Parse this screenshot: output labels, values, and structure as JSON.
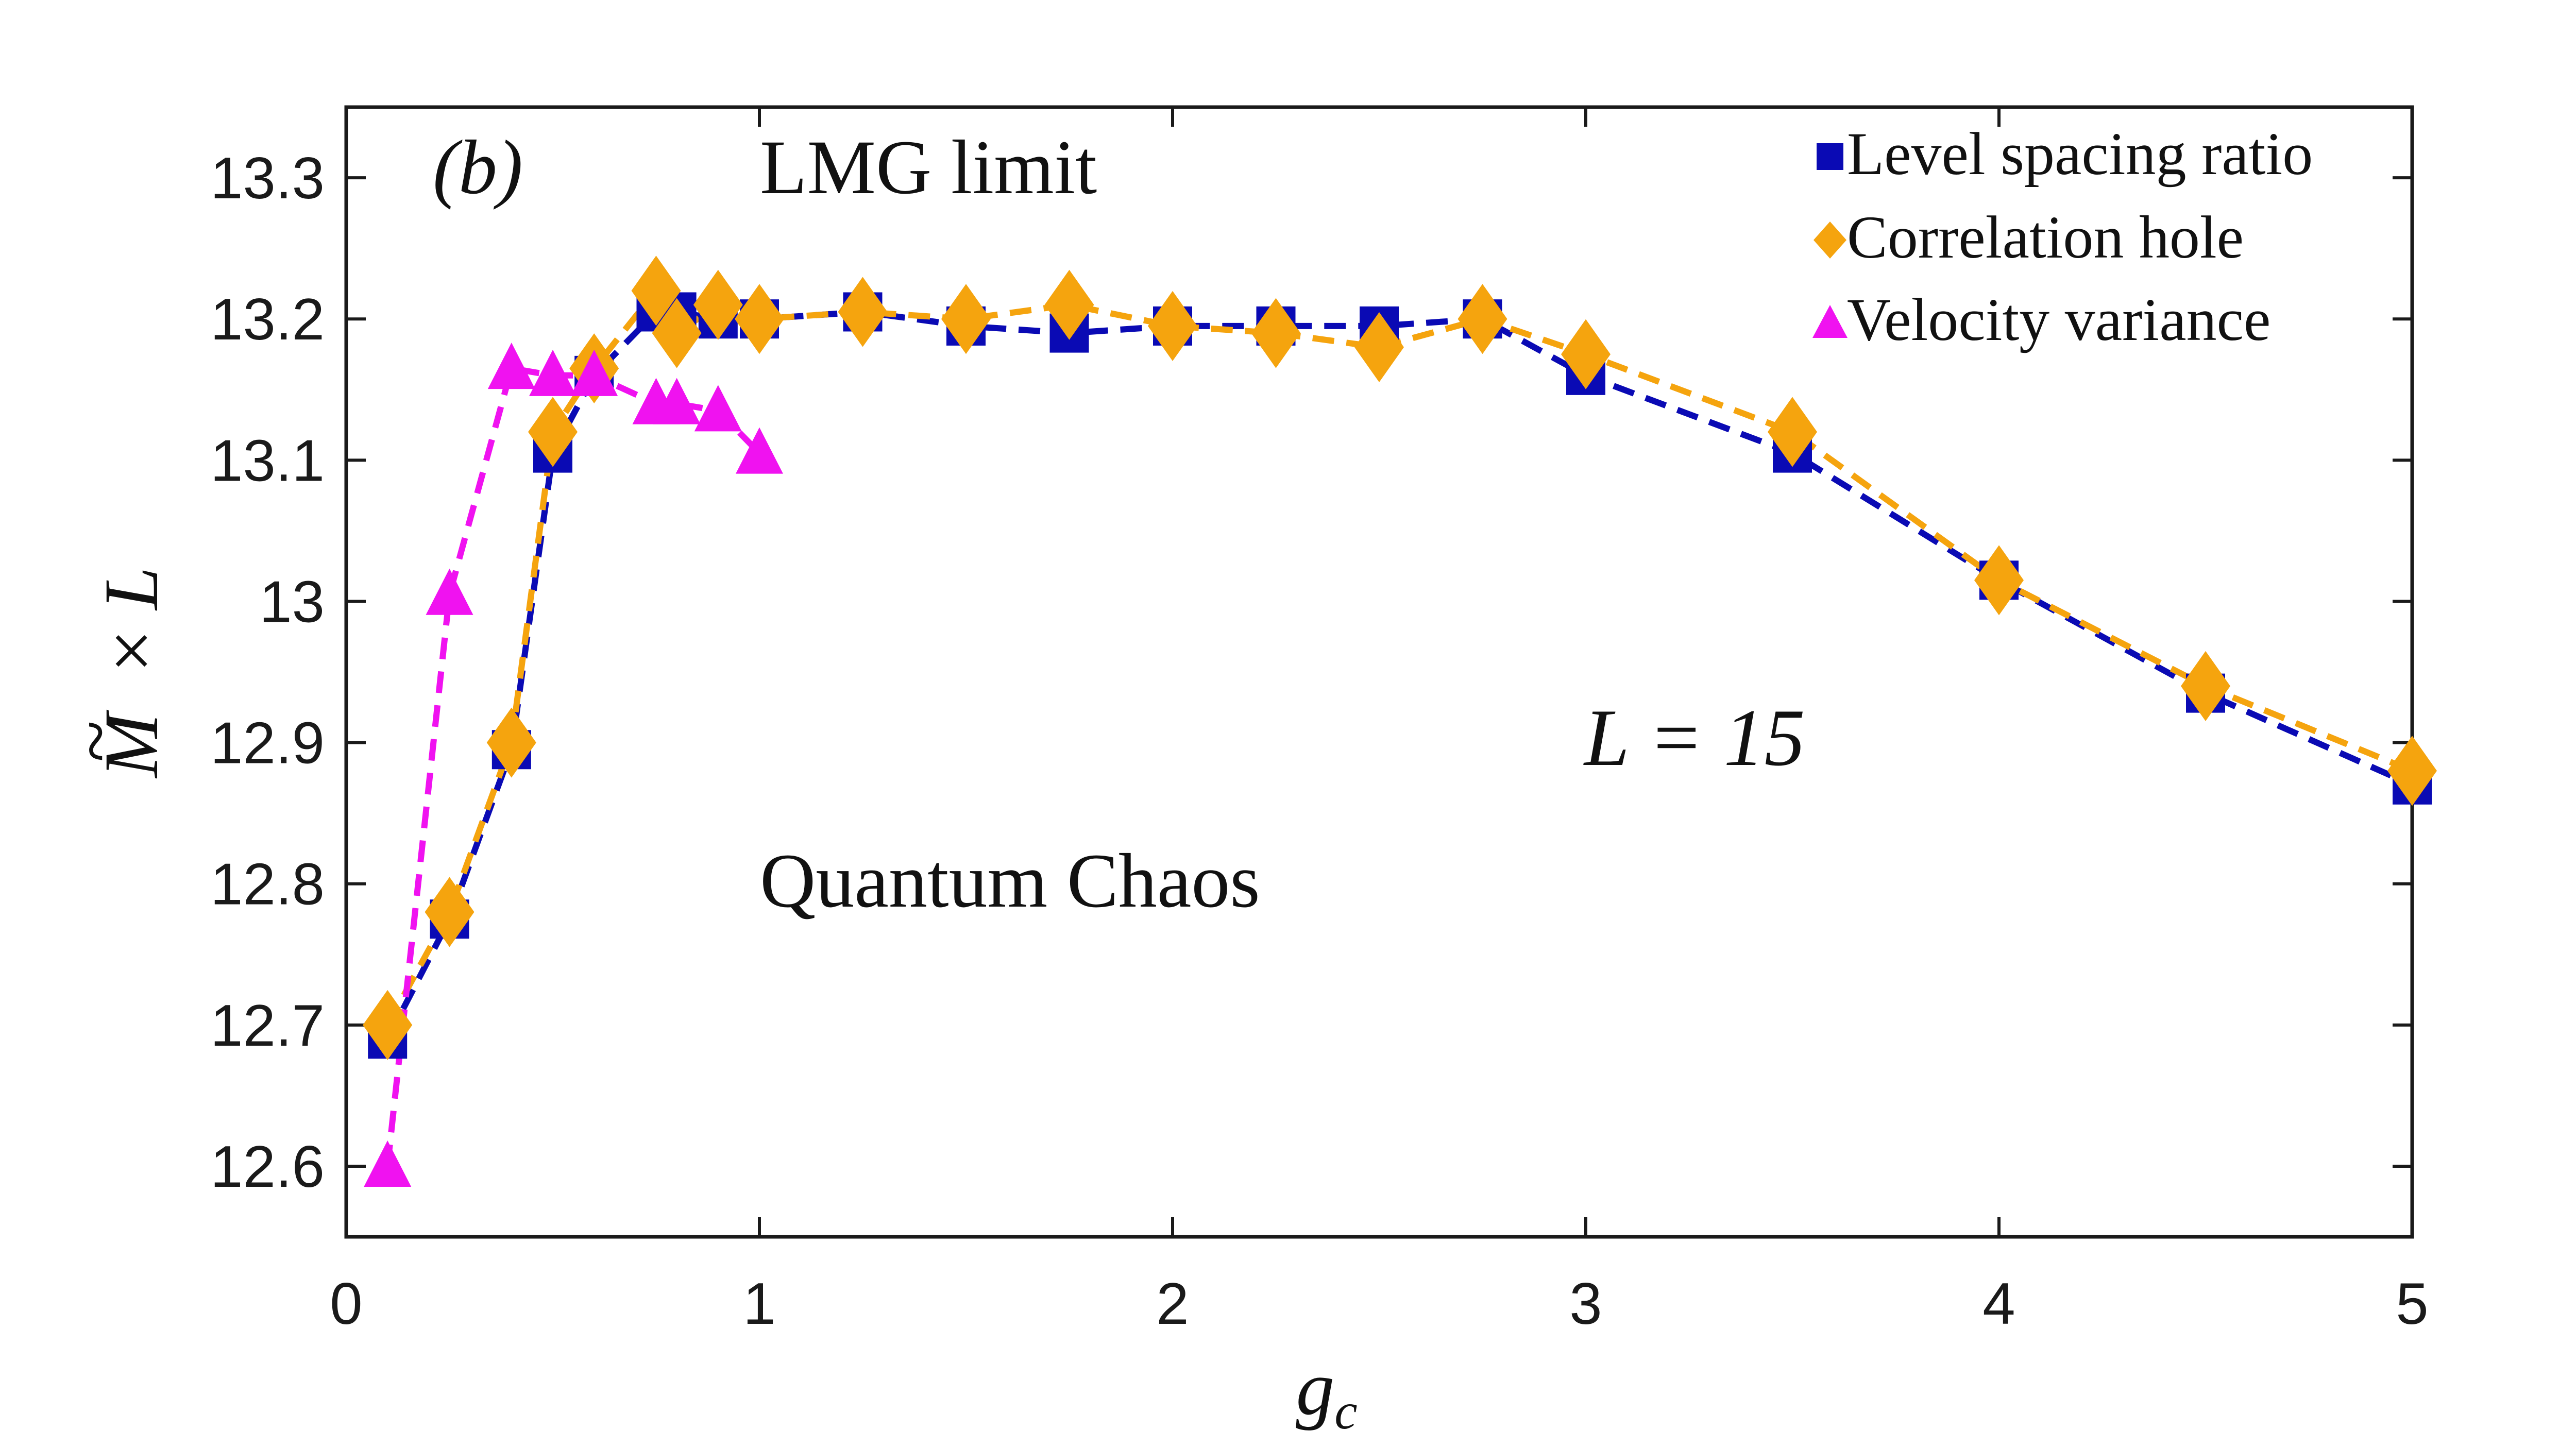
{
  "chart_data": {
    "type": "line",
    "panel_label": "(b)",
    "annotations": {
      "top": "LMG limit",
      "middle": "Quantum Chaos",
      "size": "L = 15"
    },
    "xlabel": "g_c",
    "ylabel": "M̃ × L",
    "xlim": [
      0,
      5
    ],
    "ylim": [
      12.55,
      13.35
    ],
    "xticks": [
      0,
      1,
      2,
      3,
      4,
      5
    ],
    "xtick_labels": [
      "0",
      "1",
      "2",
      "3",
      "4",
      "5"
    ],
    "yticks": [
      12.6,
      12.7,
      12.8,
      12.9,
      13.0,
      13.1,
      13.2,
      13.3
    ],
    "ytick_labels": [
      "12.6",
      "12.7",
      "12.8",
      "12.9",
      "13",
      "13.1",
      "13.2",
      "13.3"
    ],
    "legend_position": "top-right",
    "series": [
      {
        "name": "Level spacing ratio",
        "color": "#0a0ab4",
        "marker": "square",
        "x": [
          0.1,
          0.25,
          0.4,
          0.5,
          0.6,
          0.75,
          0.8,
          0.9,
          1.0,
          1.25,
          1.5,
          1.75,
          2.0,
          2.25,
          2.5,
          2.75,
          3.0,
          3.5,
          4.0,
          4.5,
          5.0
        ],
        "y": [
          12.69,
          12.775,
          12.895,
          13.105,
          13.16,
          13.205,
          13.205,
          13.2,
          13.2,
          13.205,
          13.195,
          13.19,
          13.195,
          13.195,
          13.195,
          13.2,
          13.16,
          13.105,
          13.015,
          12.935,
          12.87
        ]
      },
      {
        "name": "Correlation hole",
        "color": "#f5a40e",
        "marker": "diamond",
        "x": [
          0.1,
          0.25,
          0.4,
          0.5,
          0.6,
          0.75,
          0.8,
          0.9,
          1.0,
          1.25,
          1.5,
          1.75,
          2.0,
          2.25,
          2.5,
          2.75,
          3.0,
          3.5,
          4.0,
          4.5,
          5.0
        ],
        "y": [
          12.7,
          12.78,
          12.9,
          13.12,
          13.165,
          13.22,
          13.19,
          13.21,
          13.2,
          13.205,
          13.2,
          13.21,
          13.195,
          13.19,
          13.18,
          13.2,
          13.175,
          13.12,
          13.015,
          12.94,
          12.88
        ]
      },
      {
        "name": "Velocity variance",
        "color": "#f012f0",
        "marker": "triangle",
        "x": [
          0.1,
          0.25,
          0.4,
          0.5,
          0.6,
          0.75,
          0.8,
          0.9,
          1.0
        ],
        "y": [
          12.6,
          13.005,
          13.165,
          13.16,
          13.16,
          13.14,
          13.14,
          13.135,
          13.105
        ]
      }
    ]
  }
}
